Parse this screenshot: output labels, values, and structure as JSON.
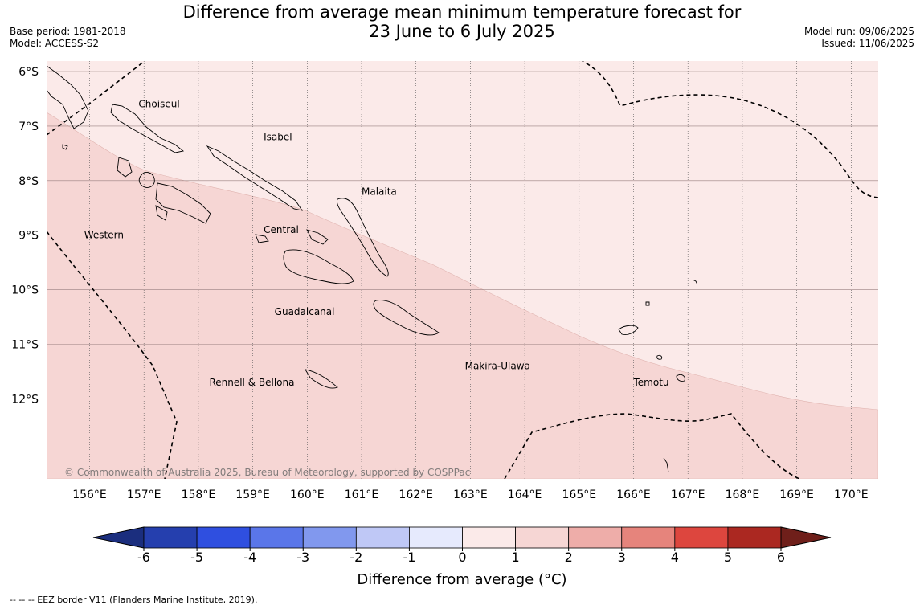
{
  "header": {
    "title_line1": "Difference from average mean minimum temperature forecast for",
    "title_line2": "23 June to 6 July 2025",
    "base_period": "Base period: 1981-2018",
    "model": "Model: ACCESS-S2",
    "model_run": "Model run: 09/06/2025",
    "issued": "Issued: 11/06/2025"
  },
  "map": {
    "lon_range": [
      155.2,
      170.5
    ],
    "lat_range": [
      -13.5,
      -5.8
    ],
    "lon_ticks": [
      {
        "value": 156,
        "label": "156°E"
      },
      {
        "value": 157,
        "label": "157°E"
      },
      {
        "value": 158,
        "label": "158°E"
      },
      {
        "value": 159,
        "label": "159°E"
      },
      {
        "value": 160,
        "label": "160°E"
      },
      {
        "value": 161,
        "label": "161°E"
      },
      {
        "value": 162,
        "label": "162°E"
      },
      {
        "value": 163,
        "label": "163°E"
      },
      {
        "value": 164,
        "label": "164°E"
      },
      {
        "value": 165,
        "label": "165°E"
      },
      {
        "value": 166,
        "label": "166°E"
      },
      {
        "value": 167,
        "label": "167°E"
      },
      {
        "value": 168,
        "label": "168°E"
      },
      {
        "value": 169,
        "label": "169°E"
      },
      {
        "value": 170,
        "label": "170°E"
      }
    ],
    "lat_ticks": [
      {
        "value": -6,
        "label": "6°S"
      },
      {
        "value": -7,
        "label": "7°S"
      },
      {
        "value": -8,
        "label": "8°S"
      },
      {
        "value": -9,
        "label": "9°S"
      },
      {
        "value": -10,
        "label": "10°S"
      },
      {
        "value": -11,
        "label": "11°S"
      },
      {
        "value": -12,
        "label": "12°S"
      }
    ],
    "colors": {
      "zone_0_to_1": "#fbeae9",
      "zone_1_to_2": "#f6d6d4"
    },
    "province_labels": [
      {
        "name": "Choiseul",
        "lon": 156.9,
        "lat": -6.6
      },
      {
        "name": "Isabel",
        "lon": 159.2,
        "lat": -7.2
      },
      {
        "name": "Malaita",
        "lon": 161.0,
        "lat": -8.2
      },
      {
        "name": "Western",
        "lon": 155.9,
        "lat": -9.0
      },
      {
        "name": "Central",
        "lon": 159.2,
        "lat": -8.9
      },
      {
        "name": "Guadalcanal",
        "lon": 159.4,
        "lat": -10.4
      },
      {
        "name": "Makira-Ulawa",
        "lon": 162.9,
        "lat": -11.4
      },
      {
        "name": "Rennell & Bellona",
        "lon": 158.2,
        "lat": -11.7
      },
      {
        "name": "Temotu",
        "lon": 166.0,
        "lat": -11.7
      }
    ],
    "copyright": "© Commonwealth of Australia 2025, Bureau of Meteorology, supported by COSPPac"
  },
  "colorbar": {
    "colors": [
      "#1b2e7e",
      "#253fae",
      "#2f4fe0",
      "#5a76e9",
      "#8198ee",
      "#bfc8f6",
      "#e6eafd",
      "#fbeae9",
      "#f6d6d4",
      "#eeada9",
      "#e6847c",
      "#dd463e",
      "#ab2821",
      "#6f1f1a"
    ],
    "tick_labels": [
      "-6",
      "-5",
      "-4",
      "-3",
      "-2",
      "-1",
      "0",
      "1",
      "2",
      "3",
      "4",
      "5",
      "6"
    ],
    "label": "Difference from average (°C)"
  },
  "footnote": "-- -- -- EEZ border V11 (Flanders Marine Institute, 2019)."
}
